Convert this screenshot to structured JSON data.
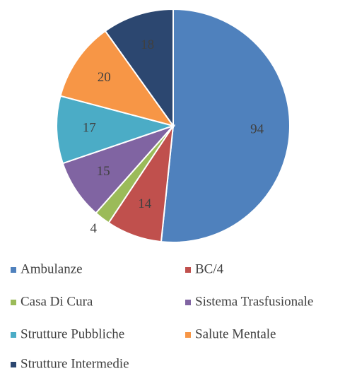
{
  "chart_data": {
    "type": "pie",
    "categories": [
      "Ambulanze",
      "BC/4",
      "Casa Di Cura",
      "Sistema Trasfusionale",
      "Strutture Pubbliche",
      "Salute Mentale",
      "Strutture Intermedie"
    ],
    "values": [
      94,
      14,
      4,
      15,
      17,
      20,
      18
    ],
    "colors": [
      "#4f81bd",
      "#c0504d",
      "#9bbb59",
      "#8064a2",
      "#4bacc6",
      "#f79646",
      "#2c4770"
    ],
    "legend": "bottom"
  }
}
